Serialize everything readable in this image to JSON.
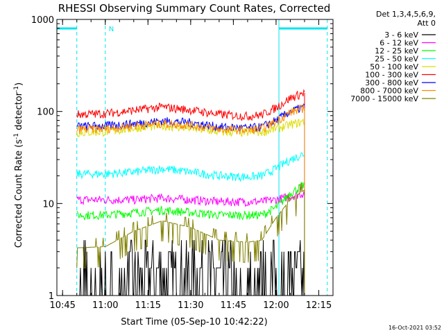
{
  "chart_data": {
    "type": "line",
    "title": "RHESSI Observing Summary Count Rates, Corrected",
    "xlabel": "Start Time (05-Sep-10 10:42:22)",
    "ylabel_main": "Corrected Count Rate (s",
    "ylabel_sup1": "-1",
    "ylabel_mid": " detector",
    "ylabel_sup2": "-1",
    "ylabel_end": ")",
    "y_scale": "log",
    "ylim": [
      1,
      1000
    ],
    "xlim_minutes": [
      -17,
      80
    ],
    "x_ticks": [
      {
        "label": "10:45",
        "minutes": -15
      },
      {
        "label": "11:00",
        "minutes": 0
      },
      {
        "label": "11:15",
        "minutes": 15
      },
      {
        "label": "11:30",
        "minutes": 30
      },
      {
        "label": "11:45",
        "minutes": 45
      },
      {
        "label": "12:00",
        "minutes": 60
      },
      {
        "label": "12:15",
        "minutes": 75
      }
    ],
    "y_ticks": [
      {
        "label": "1",
        "value": 1
      },
      {
        "label": "10",
        "value": 10
      },
      {
        "label": "100",
        "value": 100
      },
      {
        "label": "1000",
        "value": 1000
      }
    ],
    "legend": {
      "header1": "Det 1,3,4,5,6,9,",
      "header2": "Att 0",
      "position": "right"
    },
    "night_intervals_minutes": [
      [
        -17,
        -10
      ],
      [
        61,
        78
      ]
    ],
    "saa_marker": {
      "label": "N",
      "minutes": 0
    },
    "series": [
      {
        "name": "3 - 6 keV",
        "color": "#000000",
        "x": [
          -10,
          10,
          20,
          30,
          40,
          50,
          58,
          62,
          66,
          70
        ],
        "y": [
          1,
          1.6,
          2.0,
          1.5,
          1.7,
          1.3,
          1.2,
          1.3,
          2.0,
          2.8
        ]
      },
      {
        "name": "6 - 12 keV",
        "color": "#ff00ff",
        "x": [
          -10,
          0,
          10,
          20,
          30,
          40,
          50,
          55,
          60,
          65,
          70
        ],
        "y": [
          11,
          11,
          11,
          11.5,
          11,
          10.5,
          10.5,
          10.5,
          11,
          12,
          13
        ]
      },
      {
        "name": "12 - 25 keV",
        "color": "#00ff00",
        "x": [
          -10,
          0,
          10,
          20,
          30,
          40,
          50,
          55,
          60,
          65,
          70
        ],
        "y": [
          7.5,
          7.5,
          8,
          8.5,
          8,
          7.5,
          7.5,
          7.5,
          9,
          13,
          16
        ]
      },
      {
        "name": "25 - 50 keV",
        "color": "#00ffff",
        "x": [
          -10,
          0,
          10,
          20,
          30,
          40,
          50,
          55,
          60,
          65,
          70
        ],
        "y": [
          21,
          21,
          22,
          24,
          22,
          20,
          19.5,
          20,
          24,
          30,
          35
        ]
      },
      {
        "name": "50 - 100 keV",
        "color": "#dddd00",
        "x": [
          -10,
          0,
          10,
          20,
          30,
          40,
          50,
          55,
          60,
          65,
          70
        ],
        "y": [
          59,
          60,
          66,
          70,
          66,
          60,
          59,
          60,
          65,
          72,
          78
        ]
      },
      {
        "name": "100 - 300 keV",
        "color": "#ff0000",
        "x": [
          -10,
          0,
          10,
          20,
          30,
          40,
          50,
          55,
          60,
          65,
          70
        ],
        "y": [
          93,
          95,
          103,
          112,
          104,
          93,
          89,
          92,
          110,
          140,
          160
        ]
      },
      {
        "name": "300 - 800 keV",
        "color": "#0000ff",
        "x": [
          -10,
          0,
          10,
          20,
          30,
          40,
          50,
          55,
          60,
          65,
          70
        ],
        "y": [
          69,
          70,
          74,
          79,
          76,
          68,
          66,
          68,
          80,
          100,
          112
        ]
      },
      {
        "name": "800 - 7000 keV",
        "color": "#ff8800",
        "x": [
          -10,
          0,
          10,
          20,
          30,
          40,
          50,
          55,
          60,
          65,
          70
        ],
        "y": [
          64,
          65,
          70,
          74,
          71,
          64,
          63,
          65,
          78,
          98,
          110
        ]
      },
      {
        "name": "7000 - 15000 keV",
        "color": "#808000",
        "x": [
          -10,
          0,
          10,
          20,
          30,
          40,
          50,
          55,
          60,
          65,
          70
        ],
        "y": [
          3.3,
          3.4,
          5.0,
          6.5,
          5.5,
          4.0,
          3.8,
          4.0,
          7.0,
          11,
          14
        ]
      }
    ]
  },
  "footer": {
    "date": "16-Oct-2021 03:52"
  }
}
